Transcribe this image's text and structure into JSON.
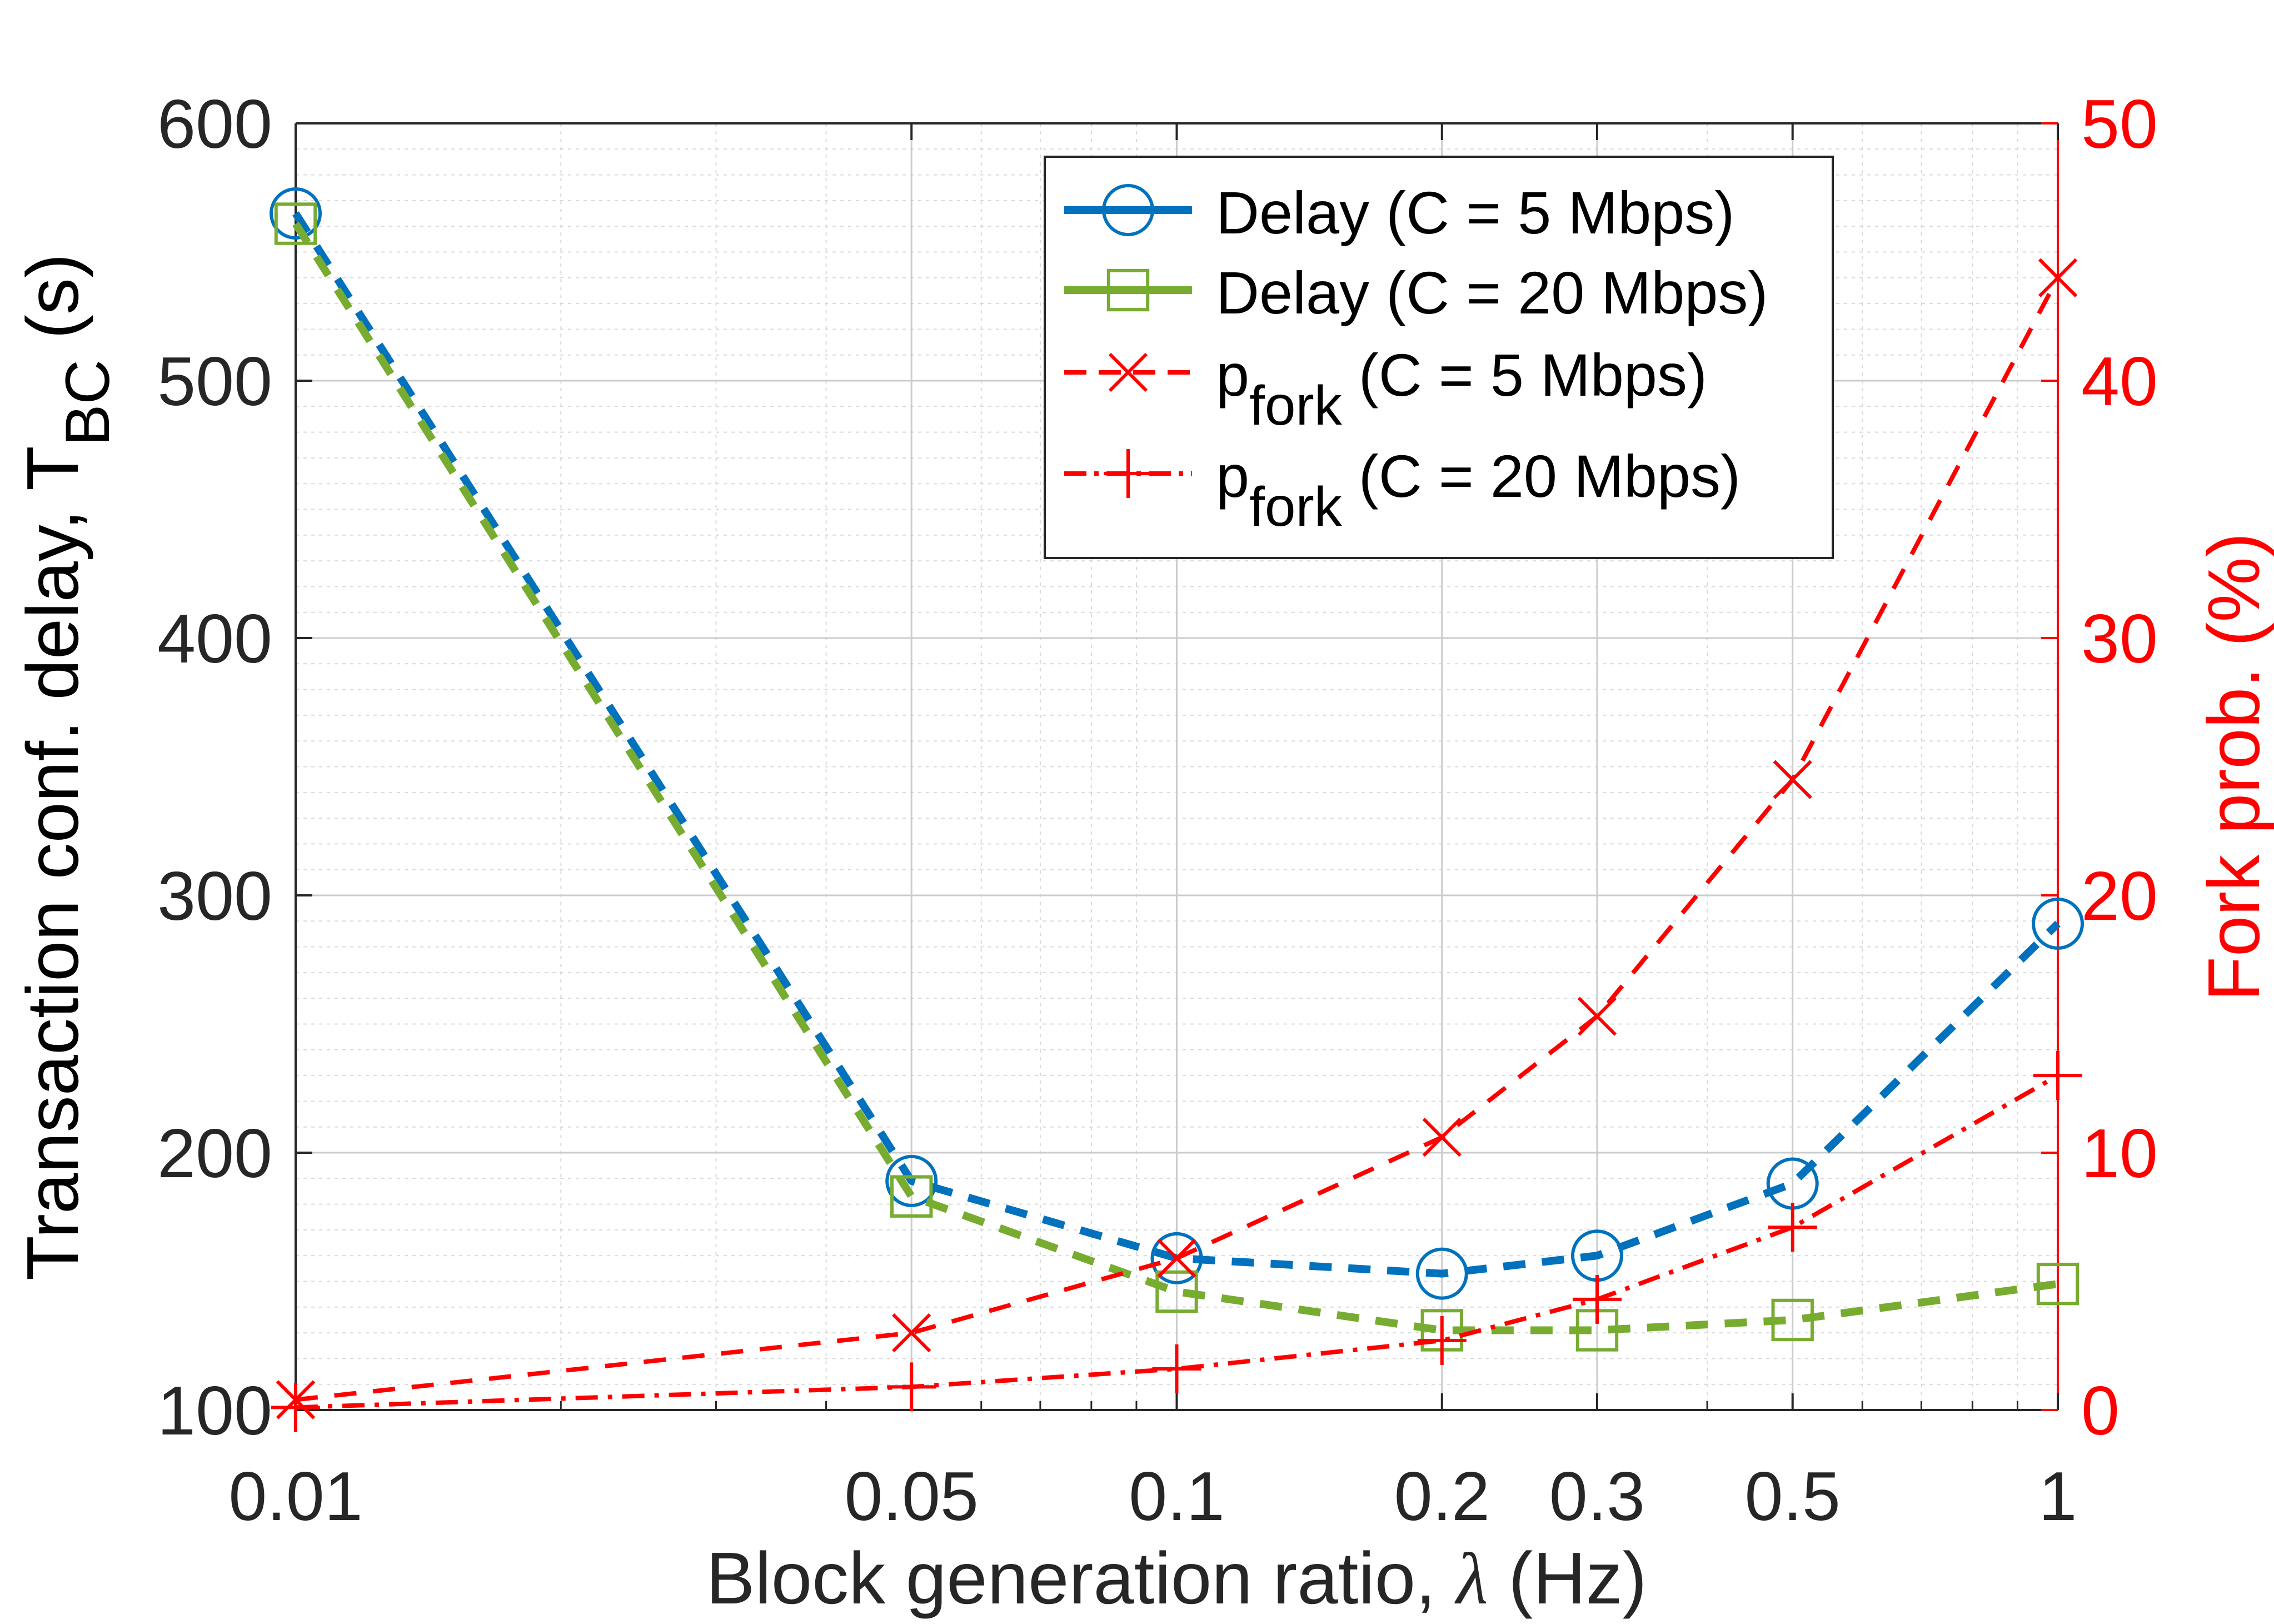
{
  "chart_data": {
    "type": "line",
    "categories": [
      "0.01",
      "0.05",
      "0.1",
      "0.2",
      "0.3",
      "0.5",
      "1"
    ],
    "xlabel": {
      "main": "Block generation ratio, ",
      "symbol": "λ",
      "unit": " (Hz)"
    },
    "ylabel_left": {
      "main": "Transaction conf. delay, T",
      "sub": "BC",
      "unit": " (s)"
    },
    "ylabel_right": "Fork prob. (%)",
    "ylim_left": [
      100,
      600
    ],
    "yticks_left": [
      100,
      200,
      300,
      400,
      500,
      600
    ],
    "ylim_right": [
      0,
      50
    ],
    "yticks_right": [
      0,
      10,
      20,
      30,
      40,
      50
    ],
    "grid": true,
    "minor_grid": true,
    "legend_position": "top-right",
    "colors": {
      "blue": "#0072bd",
      "green": "#77ac30",
      "red": "#ff0000",
      "axis_left": "#262626",
      "axis_right": "#ff0000",
      "grid": "#d9d9d9"
    },
    "series": [
      {
        "key": "delay_5",
        "legend_main": "Delay (C = 5 Mbps)",
        "legend_sub": "",
        "legend_tail": "",
        "axis": "left",
        "color": "#0072bd",
        "marker": "circle",
        "line_style": "dashed",
        "values": [
          565,
          189,
          159,
          153,
          160,
          188,
          289
        ]
      },
      {
        "key": "delay_20",
        "legend_main": "Delay (C = 20 Mbps)",
        "legend_sub": "",
        "legend_tail": "",
        "axis": "left",
        "color": "#77ac30",
        "marker": "square",
        "line_style": "dashed",
        "values": [
          561,
          183,
          146,
          131,
          131,
          135,
          149
        ]
      },
      {
        "key": "pfork_5",
        "legend_main": "p",
        "legend_sub": "fork",
        "legend_tail": " (C = 5 Mbps)",
        "axis": "right",
        "color": "#ff0000",
        "marker": "x",
        "line_style": "dashed",
        "values": [
          0.4,
          3.0,
          5.9,
          10.6,
          15.3,
          24.5,
          44.0
        ]
      },
      {
        "key": "pfork_20",
        "legend_main": "p",
        "legend_sub": "fork",
        "legend_tail": " (C = 20 Mbps)",
        "axis": "right",
        "color": "#ff0000",
        "marker": "plus",
        "line_style": "dashdot",
        "values": [
          0.1,
          0.9,
          1.6,
          2.7,
          4.3,
          7.1,
          13.0
        ]
      }
    ]
  }
}
